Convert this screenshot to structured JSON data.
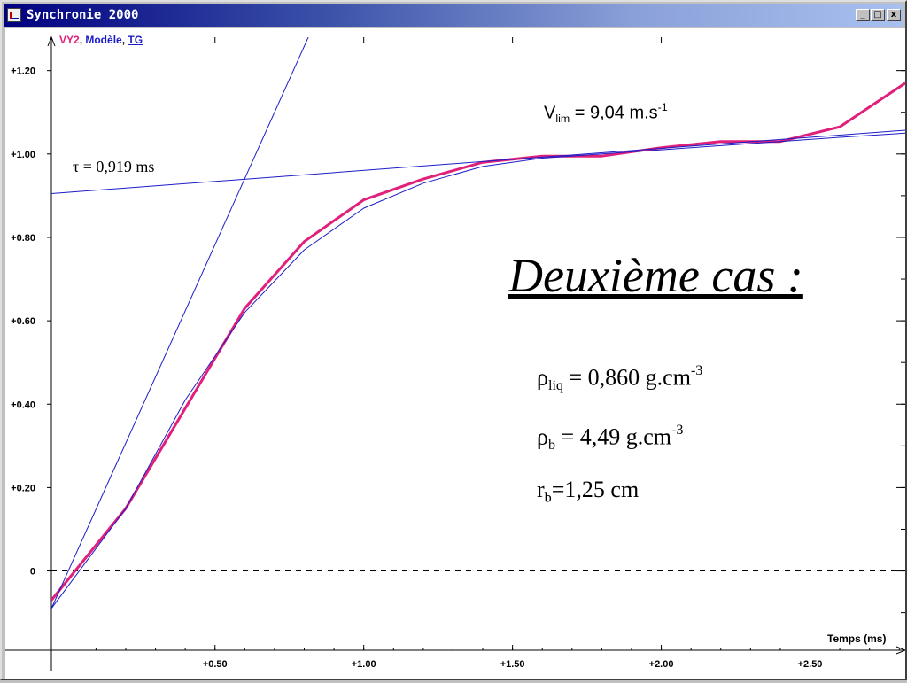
{
  "window": {
    "title": "Synchronie 2000",
    "buttons": {
      "minimize": "_",
      "maximize": "□",
      "close": "x"
    }
  },
  "legend": {
    "series1": "VY2",
    "separator1": ", ",
    "series2": "Modèle",
    "separator2": ", ",
    "series3": "TG"
  },
  "annotations": {
    "tau": "τ = 0,919 ms",
    "vlim_prefix": "V",
    "vlim_sub": "lim",
    "vlim_value": " = 9,04 m.s",
    "vlim_sup": "-1",
    "case_title": "Deuxième cas :",
    "rho_liq_symbol": "ρ",
    "rho_liq_sub": "liq",
    "rho_liq_value": " = 0,860 g.cm",
    "rho_liq_sup": "-3",
    "rho_b_symbol": "ρ",
    "rho_b_sub": "b",
    "rho_b_value": " = 4,49 g.cm",
    "rho_b_sup": "-3",
    "r_b_symbol": "r",
    "r_b_sub": "b",
    "r_b_value": "=1,25 cm"
  },
  "colors": {
    "measured": "#e0207a",
    "model": "#1c1cc8",
    "tangent": "#1c1cc8",
    "grid": "#000000"
  },
  "chart_data": {
    "type": "line",
    "title": "",
    "xlabel": "Temps (ms)",
    "ylabel": "",
    "xlim": [
      -0.05,
      2.82
    ],
    "ylim": [
      -0.19,
      1.28
    ],
    "grid": true,
    "x_ticks": [
      0.5,
      1.0,
      1.5,
      2.0,
      2.5
    ],
    "x_tick_labels": [
      "+0.50",
      "+1.00",
      "+1.50",
      "+2.00",
      "+2.50"
    ],
    "y_ticks": [
      0,
      0.2,
      0.4,
      0.6,
      0.8,
      1.0,
      1.2
    ],
    "y_tick_labels": [
      "0",
      "+0.20",
      "+0.40",
      "+0.60",
      "+0.80",
      "+1.00",
      "+1.20"
    ],
    "series": [
      {
        "name": "VY2",
        "x": [
          -0.05,
          0.2,
          0.6,
          0.8,
          1.0,
          1.2,
          1.4,
          1.6,
          1.8,
          2.0,
          2.2,
          2.4,
          2.6,
          2.82
        ],
        "y": [
          -0.07,
          0.15,
          0.63,
          0.79,
          0.89,
          0.94,
          0.98,
          0.995,
          0.995,
          1.015,
          1.03,
          1.03,
          1.065,
          1.17
        ]
      },
      {
        "name": "Modèle",
        "x": [
          -0.05,
          0.2,
          0.4,
          0.6,
          0.8,
          1.0,
          1.2,
          1.4,
          1.6,
          1.8,
          2.0,
          2.2,
          2.4,
          2.6,
          2.82
        ],
        "y": [
          -0.09,
          0.15,
          0.41,
          0.62,
          0.77,
          0.87,
          0.93,
          0.97,
          0.99,
          1.0,
          1.01,
          1.02,
          1.03,
          1.04,
          1.05
        ]
      },
      {
        "name": "TG",
        "x": [
          -0.05,
          0.82
        ],
        "y": [
          -0.09,
          1.29
        ]
      },
      {
        "name": "asymptote",
        "x": [
          -0.05,
          2.82
        ],
        "y": [
          0.905,
          1.057
        ]
      }
    ],
    "zero_line": 0
  }
}
